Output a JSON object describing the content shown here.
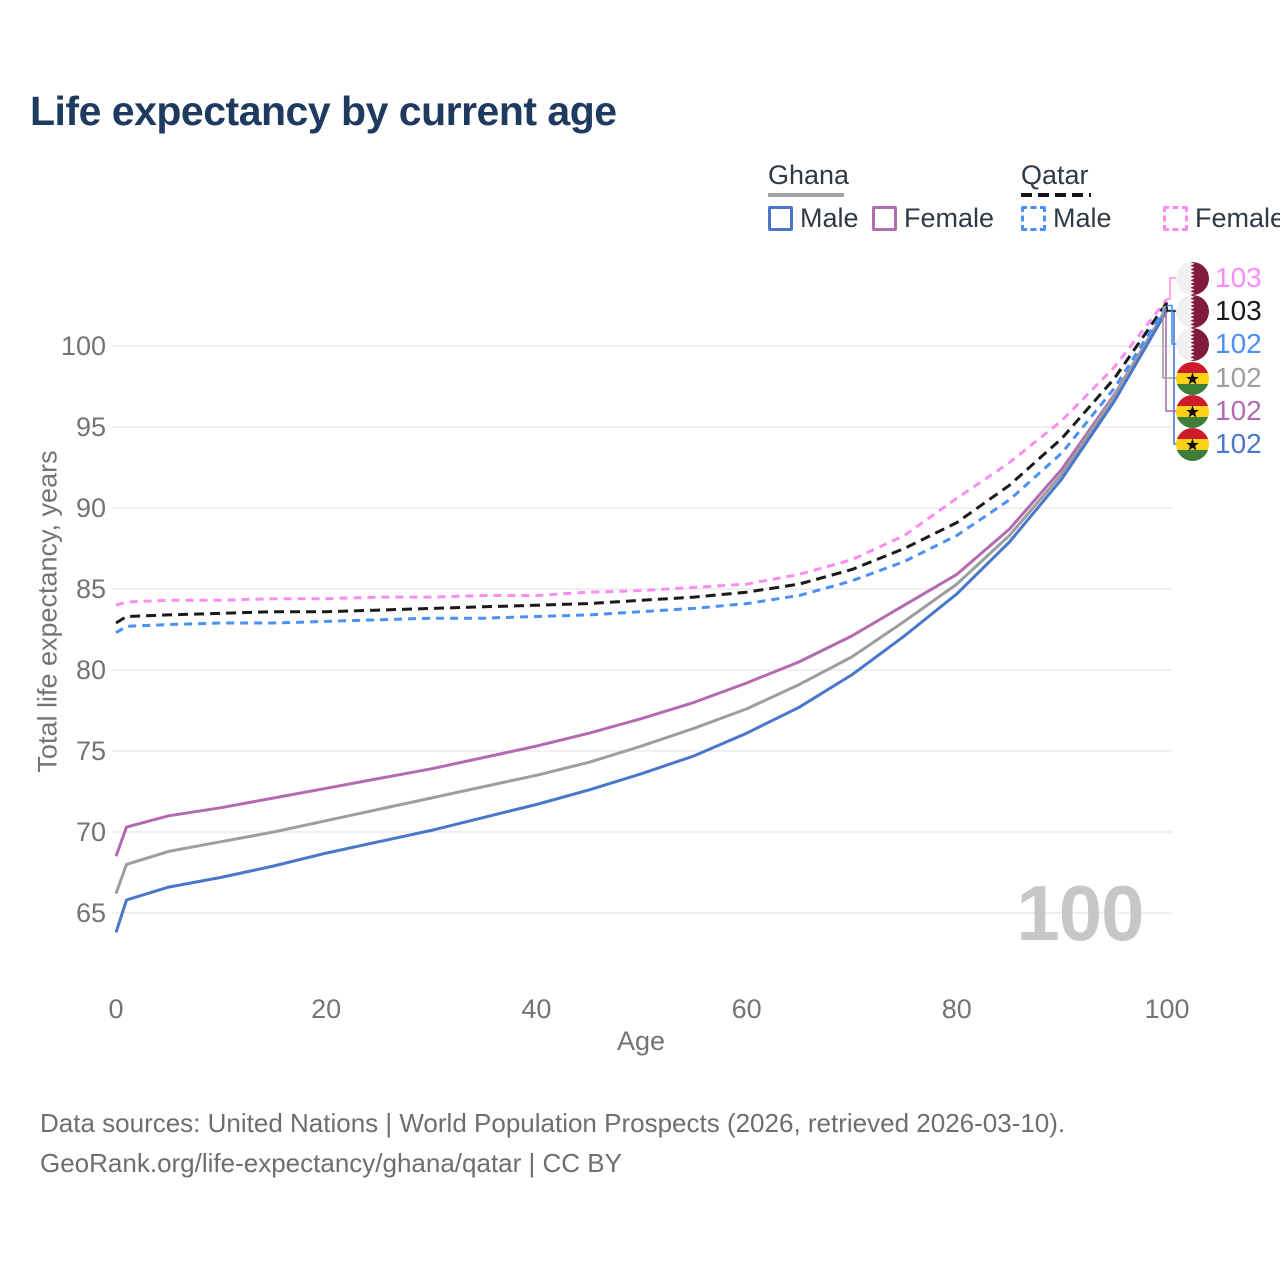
{
  "title": "Life expectancy by current age",
  "legend": {
    "ghana": {
      "header": "Ghana",
      "line_color": "#a3a3a3",
      "male_label": "Male",
      "male_color": "#4a77c9",
      "female_label": "Female",
      "female_color": "#b36ab0"
    },
    "qatar": {
      "header": "Qatar",
      "line_color": "#151515",
      "male_label": "Male",
      "male_color": "#4a90f5",
      "female_label": "Female",
      "female_color": "#fb8df2"
    }
  },
  "chart_data": {
    "type": "line",
    "title": "Life expectancy by current age",
    "xlabel": "Age",
    "ylabel": "Total life expectancy, years",
    "grid": "horizontal",
    "xlim": [
      0,
      100
    ],
    "ylim": [
      63,
      104
    ],
    "xticks": [
      0,
      20,
      40,
      60,
      80,
      100
    ],
    "yticks": [
      65,
      70,
      75,
      80,
      85,
      90,
      95,
      100
    ],
    "x": [
      0,
      1,
      5,
      10,
      15,
      20,
      25,
      30,
      35,
      40,
      45,
      50,
      55,
      60,
      65,
      70,
      75,
      80,
      85,
      90,
      95,
      100
    ],
    "series": [
      {
        "name": "Ghana Female",
        "country": "Ghana",
        "sex": "Female",
        "color": "#b36ab0",
        "dash": "solid",
        "end_row": 4,
        "values": [
          68.5,
          70.3,
          71.0,
          71.5,
          72.1,
          72.7,
          73.3,
          73.9,
          74.6,
          75.3,
          76.1,
          77.0,
          78.0,
          79.2,
          80.5,
          82.1,
          84.0,
          85.9,
          88.7,
          92.4,
          97.0,
          102.3
        ]
      },
      {
        "name": "Ghana Both sexes",
        "country": "Ghana",
        "sex": "All",
        "color": "#9e9e9e",
        "dash": "solid",
        "end_row": 3,
        "values": [
          66.2,
          68.0,
          68.8,
          69.4,
          70.0,
          70.7,
          71.4,
          72.1,
          72.8,
          73.5,
          74.3,
          75.3,
          76.4,
          77.6,
          79.1,
          80.8,
          83.0,
          85.3,
          88.3,
          92.1,
          96.9,
          102.4
        ]
      },
      {
        "name": "Ghana Male",
        "country": "Ghana",
        "sex": "Male",
        "color": "#4a77c9",
        "dash": "solid",
        "end_row": 5,
        "values": [
          63.8,
          65.8,
          66.6,
          67.2,
          67.9,
          68.7,
          69.4,
          70.1,
          70.9,
          71.7,
          72.6,
          73.6,
          74.7,
          76.1,
          77.7,
          79.7,
          82.1,
          84.7,
          87.9,
          91.8,
          96.6,
          102.2
        ]
      },
      {
        "name": "Qatar Female",
        "country": "Qatar",
        "sex": "Female",
        "color": "#fb8df2",
        "dash": "dashed",
        "end_row": 0,
        "values": [
          84.0,
          84.2,
          84.3,
          84.3,
          84.4,
          84.4,
          84.5,
          84.5,
          84.6,
          84.6,
          84.8,
          84.9,
          85.1,
          85.3,
          85.9,
          86.8,
          88.3,
          90.6,
          92.8,
          95.4,
          98.7,
          102.9
        ]
      },
      {
        "name": "Qatar Both sexes",
        "country": "Qatar",
        "sex": "All",
        "color": "#1a1a1a",
        "dash": "dashed",
        "end_row": 1,
        "values": [
          82.9,
          83.3,
          83.4,
          83.5,
          83.6,
          83.6,
          83.7,
          83.8,
          83.9,
          84.0,
          84.1,
          84.3,
          84.5,
          84.8,
          85.3,
          86.2,
          87.5,
          89.1,
          91.4,
          94.3,
          98.0,
          102.7
        ]
      },
      {
        "name": "Qatar Male",
        "country": "Qatar",
        "sex": "Male",
        "color": "#4a90f5",
        "dash": "dashed",
        "end_row": 2,
        "values": [
          82.3,
          82.7,
          82.8,
          82.9,
          82.9,
          83.0,
          83.1,
          83.2,
          83.2,
          83.3,
          83.4,
          83.6,
          83.8,
          84.1,
          84.6,
          85.5,
          86.7,
          88.3,
          90.5,
          93.4,
          97.4,
          102.5
        ]
      }
    ]
  },
  "end_labels": [
    {
      "value": "103",
      "flag": "qatar",
      "color": "#fb8df2"
    },
    {
      "value": "103",
      "flag": "qatar",
      "color": "#1a1a1a"
    },
    {
      "value": "102",
      "flag": "qatar",
      "color": "#4a90f5"
    },
    {
      "value": "102",
      "flag": "ghana",
      "color": "#9e9e9e"
    },
    {
      "value": "102",
      "flag": "ghana",
      "color": "#b36ab0"
    },
    {
      "value": "102",
      "flag": "ghana",
      "color": "#4a77c9"
    }
  ],
  "watermark": "100",
  "footer": {
    "line1": "Data sources: United Nations | World Population Prospects (2026, retrieved 2026-03-10).",
    "line2": "GeoRank.org/life-expectancy/ghana/qatar | CC BY"
  },
  "flag_colors": {
    "qatar_maroon": "#801b3e",
    "qatar_white": "#f2f0f1",
    "ghana_red": "#ce1b2c",
    "ghana_gold": "#fcd116",
    "ghana_green": "#3e7d3a",
    "ghana_star": "#111111"
  }
}
